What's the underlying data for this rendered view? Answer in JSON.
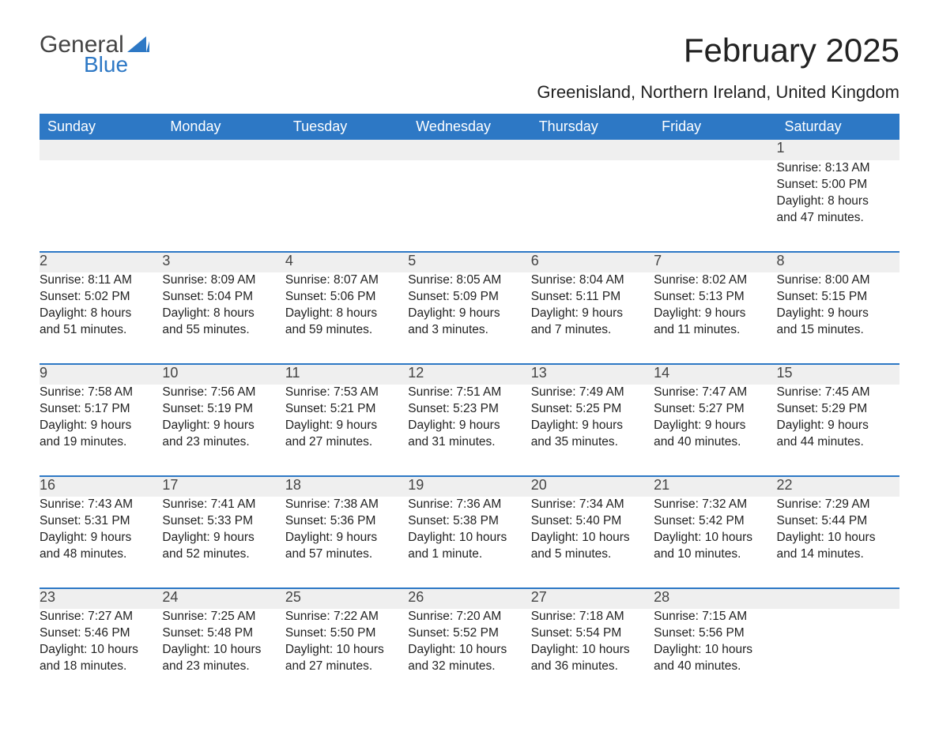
{
  "logo": {
    "general": "General",
    "blue": "Blue",
    "sail_color": "#2d78c5"
  },
  "title": "February 2025",
  "location": "Greenisland, Northern Ireland, United Kingdom",
  "colors": {
    "header_bg": "#2d78c5",
    "header_text": "#ffffff",
    "daynum_bg": "#efefef",
    "border": "#2d78c5",
    "text": "#222222"
  },
  "weekdays": [
    "Sunday",
    "Monday",
    "Tuesday",
    "Wednesday",
    "Thursday",
    "Friday",
    "Saturday"
  ],
  "weeks": [
    [
      null,
      null,
      null,
      null,
      null,
      null,
      {
        "n": "1",
        "sunrise": "Sunrise: 8:13 AM",
        "sunset": "Sunset: 5:00 PM",
        "day1": "Daylight: 8 hours",
        "day2": "and 47 minutes."
      }
    ],
    [
      {
        "n": "2",
        "sunrise": "Sunrise: 8:11 AM",
        "sunset": "Sunset: 5:02 PM",
        "day1": "Daylight: 8 hours",
        "day2": "and 51 minutes."
      },
      {
        "n": "3",
        "sunrise": "Sunrise: 8:09 AM",
        "sunset": "Sunset: 5:04 PM",
        "day1": "Daylight: 8 hours",
        "day2": "and 55 minutes."
      },
      {
        "n": "4",
        "sunrise": "Sunrise: 8:07 AM",
        "sunset": "Sunset: 5:06 PM",
        "day1": "Daylight: 8 hours",
        "day2": "and 59 minutes."
      },
      {
        "n": "5",
        "sunrise": "Sunrise: 8:05 AM",
        "sunset": "Sunset: 5:09 PM",
        "day1": "Daylight: 9 hours",
        "day2": "and 3 minutes."
      },
      {
        "n": "6",
        "sunrise": "Sunrise: 8:04 AM",
        "sunset": "Sunset: 5:11 PM",
        "day1": "Daylight: 9 hours",
        "day2": "and 7 minutes."
      },
      {
        "n": "7",
        "sunrise": "Sunrise: 8:02 AM",
        "sunset": "Sunset: 5:13 PM",
        "day1": "Daylight: 9 hours",
        "day2": "and 11 minutes."
      },
      {
        "n": "8",
        "sunrise": "Sunrise: 8:00 AM",
        "sunset": "Sunset: 5:15 PM",
        "day1": "Daylight: 9 hours",
        "day2": "and 15 minutes."
      }
    ],
    [
      {
        "n": "9",
        "sunrise": "Sunrise: 7:58 AM",
        "sunset": "Sunset: 5:17 PM",
        "day1": "Daylight: 9 hours",
        "day2": "and 19 minutes."
      },
      {
        "n": "10",
        "sunrise": "Sunrise: 7:56 AM",
        "sunset": "Sunset: 5:19 PM",
        "day1": "Daylight: 9 hours",
        "day2": "and 23 minutes."
      },
      {
        "n": "11",
        "sunrise": "Sunrise: 7:53 AM",
        "sunset": "Sunset: 5:21 PM",
        "day1": "Daylight: 9 hours",
        "day2": "and 27 minutes."
      },
      {
        "n": "12",
        "sunrise": "Sunrise: 7:51 AM",
        "sunset": "Sunset: 5:23 PM",
        "day1": "Daylight: 9 hours",
        "day2": "and 31 minutes."
      },
      {
        "n": "13",
        "sunrise": "Sunrise: 7:49 AM",
        "sunset": "Sunset: 5:25 PM",
        "day1": "Daylight: 9 hours",
        "day2": "and 35 minutes."
      },
      {
        "n": "14",
        "sunrise": "Sunrise: 7:47 AM",
        "sunset": "Sunset: 5:27 PM",
        "day1": "Daylight: 9 hours",
        "day2": "and 40 minutes."
      },
      {
        "n": "15",
        "sunrise": "Sunrise: 7:45 AM",
        "sunset": "Sunset: 5:29 PM",
        "day1": "Daylight: 9 hours",
        "day2": "and 44 minutes."
      }
    ],
    [
      {
        "n": "16",
        "sunrise": "Sunrise: 7:43 AM",
        "sunset": "Sunset: 5:31 PM",
        "day1": "Daylight: 9 hours",
        "day2": "and 48 minutes."
      },
      {
        "n": "17",
        "sunrise": "Sunrise: 7:41 AM",
        "sunset": "Sunset: 5:33 PM",
        "day1": "Daylight: 9 hours",
        "day2": "and 52 minutes."
      },
      {
        "n": "18",
        "sunrise": "Sunrise: 7:38 AM",
        "sunset": "Sunset: 5:36 PM",
        "day1": "Daylight: 9 hours",
        "day2": "and 57 minutes."
      },
      {
        "n": "19",
        "sunrise": "Sunrise: 7:36 AM",
        "sunset": "Sunset: 5:38 PM",
        "day1": "Daylight: 10 hours",
        "day2": "and 1 minute."
      },
      {
        "n": "20",
        "sunrise": "Sunrise: 7:34 AM",
        "sunset": "Sunset: 5:40 PM",
        "day1": "Daylight: 10 hours",
        "day2": "and 5 minutes."
      },
      {
        "n": "21",
        "sunrise": "Sunrise: 7:32 AM",
        "sunset": "Sunset: 5:42 PM",
        "day1": "Daylight: 10 hours",
        "day2": "and 10 minutes."
      },
      {
        "n": "22",
        "sunrise": "Sunrise: 7:29 AM",
        "sunset": "Sunset: 5:44 PM",
        "day1": "Daylight: 10 hours",
        "day2": "and 14 minutes."
      }
    ],
    [
      {
        "n": "23",
        "sunrise": "Sunrise: 7:27 AM",
        "sunset": "Sunset: 5:46 PM",
        "day1": "Daylight: 10 hours",
        "day2": "and 18 minutes."
      },
      {
        "n": "24",
        "sunrise": "Sunrise: 7:25 AM",
        "sunset": "Sunset: 5:48 PM",
        "day1": "Daylight: 10 hours",
        "day2": "and 23 minutes."
      },
      {
        "n": "25",
        "sunrise": "Sunrise: 7:22 AM",
        "sunset": "Sunset: 5:50 PM",
        "day1": "Daylight: 10 hours",
        "day2": "and 27 minutes."
      },
      {
        "n": "26",
        "sunrise": "Sunrise: 7:20 AM",
        "sunset": "Sunset: 5:52 PM",
        "day1": "Daylight: 10 hours",
        "day2": "and 32 minutes."
      },
      {
        "n": "27",
        "sunrise": "Sunrise: 7:18 AM",
        "sunset": "Sunset: 5:54 PM",
        "day1": "Daylight: 10 hours",
        "day2": "and 36 minutes."
      },
      {
        "n": "28",
        "sunrise": "Sunrise: 7:15 AM",
        "sunset": "Sunset: 5:56 PM",
        "day1": "Daylight: 10 hours",
        "day2": "and 40 minutes."
      },
      null
    ]
  ]
}
